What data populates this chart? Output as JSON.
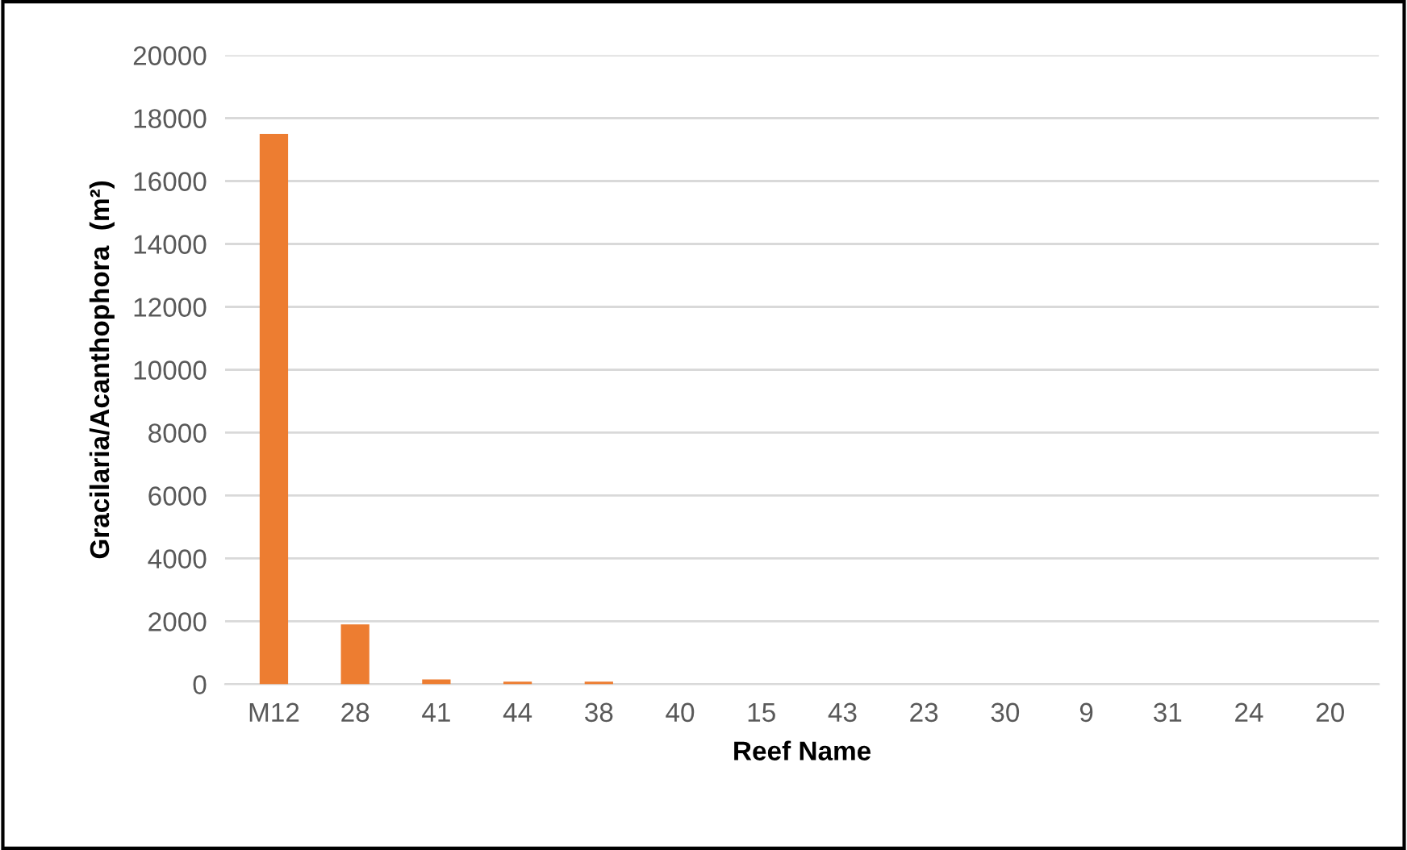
{
  "chart_data": {
    "type": "bar",
    "xlabel": "Reef Name",
    "ylabel": "Gracilaria/Acanthophora  (m²)",
    "categories": [
      "M12",
      "28",
      "41",
      "44",
      "38",
      "40",
      "15",
      "43",
      "23",
      "30",
      "9",
      "31",
      "24",
      "20"
    ],
    "values": [
      17500,
      1900,
      150,
      80,
      80,
      0,
      0,
      0,
      0,
      0,
      0,
      0,
      0,
      0
    ],
    "color": "#ed7d31",
    "ylim": [
      0,
      20000
    ],
    "yticks": [
      0,
      2000,
      4000,
      6000,
      8000,
      10000,
      12000,
      14000,
      16000,
      18000,
      20000
    ],
    "grid": "y",
    "legend": false
  }
}
